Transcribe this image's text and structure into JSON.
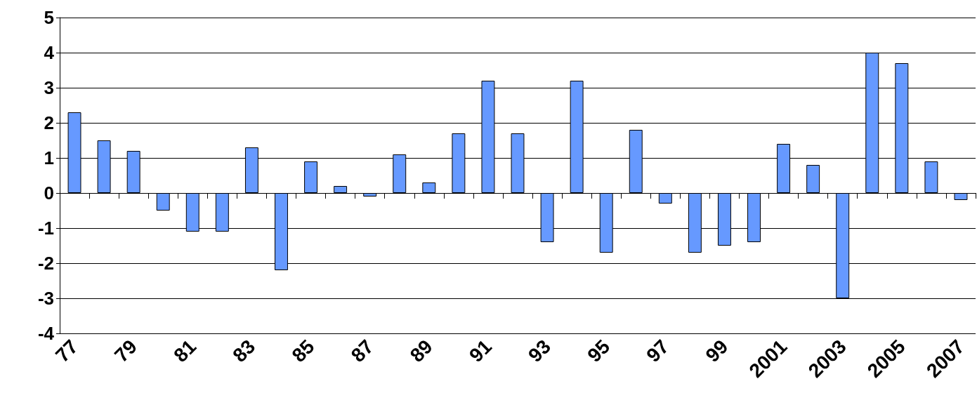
{
  "chart_data": {
    "type": "bar",
    "categories": [
      "77",
      null,
      "79",
      null,
      "81",
      null,
      "83",
      null,
      "85",
      null,
      "87",
      null,
      "89",
      null,
      "91",
      null,
      "93",
      null,
      "95",
      null,
      "97",
      null,
      "99",
      null,
      "2001",
      null,
      "2003",
      null,
      "2005",
      null,
      "2007"
    ],
    "values": [
      2.3,
      1.5,
      1.2,
      -0.5,
      -1.1,
      -1.1,
      1.3,
      -2.2,
      0.9,
      0.2,
      -0.1,
      1.1,
      0.3,
      1.7,
      3.2,
      1.7,
      -1.4,
      3.2,
      -1.7,
      1.8,
      -0.3,
      -1.7,
      -1.5,
      -1.4,
      1.4,
      0.8,
      -3.0,
      4.0,
      3.7,
      0.9,
      -0.2
    ],
    "color": "#6699ff",
    "ylim": [
      -4,
      5
    ],
    "yticks": [
      -4,
      -3,
      -2,
      -1,
      0,
      1,
      2,
      3,
      4,
      5
    ],
    "grid": "y"
  }
}
